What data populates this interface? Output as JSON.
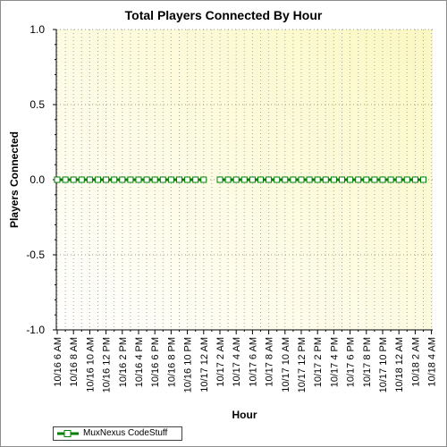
{
  "chart_data": {
    "type": "line",
    "title": "Total Players Connected By Hour",
    "xlabel": "Hour",
    "ylabel": "Players Connected",
    "ylim": [
      -1.0,
      1.0
    ],
    "yticks": [
      "1.0",
      "0.5",
      "0.0",
      "-0.5",
      "-1.0"
    ],
    "xticks": [
      "10/16 6 AM",
      "10/16 8 AM",
      "10/16 10 AM",
      "10/16 12 PM",
      "10/16 2 PM",
      "10/16 4 PM",
      "10/16 6 PM",
      "10/16 8 PM",
      "10/16 10 PM",
      "10/17 12 AM",
      "10/17 2 AM",
      "10/17 4 AM",
      "10/17 6 AM",
      "10/17 8 AM",
      "10/17 10 AM",
      "10/17 12 PM",
      "10/17 2 PM",
      "10/17 4 PM",
      "10/17 6 PM",
      "10/17 8 PM",
      "10/17 10 PM",
      "10/18 12 AM",
      "10/18 2 AM",
      "10/18 4 AM"
    ],
    "grid": true,
    "legend_position": "bottom-left",
    "series": [
      {
        "name": "MuxNexus CodeStuff",
        "color": "#008000",
        "segments": [
          {
            "x_start_hour": 0,
            "values": [
              0,
              0,
              0,
              0,
              0,
              0,
              0,
              0,
              0,
              0,
              0,
              0,
              0,
              0,
              0,
              0,
              0,
              0,
              0
            ]
          },
          {
            "x_start_hour": 20,
            "values": [
              0,
              0,
              0,
              0,
              0,
              0,
              0,
              0,
              0,
              0,
              0,
              0,
              0,
              0,
              0,
              0,
              0,
              0,
              0,
              0,
              0,
              0,
              0,
              0,
              0,
              0
            ]
          }
        ]
      }
    ]
  }
}
